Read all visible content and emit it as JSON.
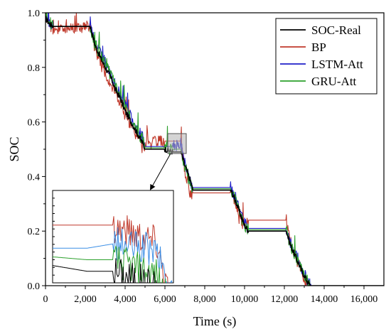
{
  "chart_data": {
    "type": "line",
    "title": "",
    "xlabel": "Time (s)",
    "ylabel": "SOC",
    "xlim": [
      0,
      17000
    ],
    "ylim": [
      0,
      1.0
    ],
    "xticks": [
      0,
      2000,
      4000,
      6000,
      8000,
      10000,
      12000,
      14000,
      16000
    ],
    "xtick_labels": [
      "0",
      "2,000",
      "4,000",
      "6,000",
      "8,000",
      "10,000",
      "12,000",
      "14,000",
      "16,000"
    ],
    "yticks": [
      0.0,
      0.2,
      0.4,
      0.6,
      0.8,
      1.0
    ],
    "ytick_labels": [
      "0.0",
      "0.2",
      "0.4",
      "0.6",
      "0.8",
      "1.0"
    ],
    "grid": false,
    "legend_position": "top-right",
    "inset": {
      "zoom_x_range": [
        6200,
        6900
      ],
      "zoom_y_range": [
        0.48,
        0.56
      ],
      "position": "lower-left"
    },
    "series": [
      {
        "name": "SOC-Real",
        "color": "#000000",
        "points": [
          [
            0,
            0.98
          ],
          [
            200,
            0.96
          ],
          [
            400,
            0.95
          ],
          [
            2250,
            0.95
          ],
          [
            2500,
            0.88
          ],
          [
            2800,
            0.83
          ],
          [
            3000,
            0.8
          ],
          [
            3300,
            0.76
          ],
          [
            3500,
            0.72
          ],
          [
            3800,
            0.68
          ],
          [
            4000,
            0.64
          ],
          [
            4300,
            0.6
          ],
          [
            4600,
            0.56
          ],
          [
            4900,
            0.52
          ],
          [
            5000,
            0.5
          ],
          [
            6000,
            0.5
          ],
          [
            6400,
            0.49
          ],
          [
            6800,
            0.49
          ],
          [
            7000,
            0.44
          ],
          [
            7300,
            0.38
          ],
          [
            7400,
            0.35
          ],
          [
            9300,
            0.35
          ],
          [
            9500,
            0.32
          ],
          [
            9800,
            0.26
          ],
          [
            10000,
            0.22
          ],
          [
            10200,
            0.2
          ],
          [
            12100,
            0.2
          ],
          [
            12300,
            0.15
          ],
          [
            12600,
            0.1
          ],
          [
            12900,
            0.05
          ],
          [
            13200,
            0.01
          ],
          [
            13300,
            0.0
          ],
          [
            17000,
            0.0
          ]
        ]
      },
      {
        "name": "BP",
        "color": "#c0392b",
        "points": [
          [
            0,
            0.99
          ],
          [
            200,
            0.96
          ],
          [
            400,
            0.94
          ],
          [
            2250,
            0.95
          ],
          [
            2500,
            0.86
          ],
          [
            2800,
            0.82
          ],
          [
            3000,
            0.78
          ],
          [
            3300,
            0.74
          ],
          [
            3500,
            0.71
          ],
          [
            3800,
            0.66
          ],
          [
            4000,
            0.62
          ],
          [
            4300,
            0.58
          ],
          [
            4600,
            0.55
          ],
          [
            4900,
            0.5
          ],
          [
            5000,
            0.52
          ],
          [
            6000,
            0.53
          ],
          [
            6400,
            0.53
          ],
          [
            6800,
            0.53
          ],
          [
            7000,
            0.42
          ],
          [
            7300,
            0.33
          ],
          [
            7400,
            0.34
          ],
          [
            9300,
            0.34
          ],
          [
            9500,
            0.31
          ],
          [
            9800,
            0.25
          ],
          [
            10000,
            0.21
          ],
          [
            10200,
            0.24
          ],
          [
            12100,
            0.24
          ],
          [
            12300,
            0.16
          ],
          [
            12600,
            0.1
          ],
          [
            12900,
            0.04
          ],
          [
            13200,
            0.0
          ],
          [
            17000,
            0.0
          ]
        ]
      },
      {
        "name": "LSTM-Att",
        "color": "#1f1fc8",
        "points": [
          [
            0,
            1.0
          ],
          [
            200,
            0.96
          ],
          [
            400,
            0.95
          ],
          [
            2250,
            0.95
          ],
          [
            2500,
            0.89
          ],
          [
            2800,
            0.85
          ],
          [
            3000,
            0.82
          ],
          [
            3300,
            0.78
          ],
          [
            3500,
            0.74
          ],
          [
            3800,
            0.7
          ],
          [
            4000,
            0.66
          ],
          [
            4300,
            0.62
          ],
          [
            4600,
            0.58
          ],
          [
            4900,
            0.54
          ],
          [
            5000,
            0.51
          ],
          [
            6000,
            0.51
          ],
          [
            6400,
            0.51
          ],
          [
            6800,
            0.52
          ],
          [
            7000,
            0.45
          ],
          [
            7300,
            0.37
          ],
          [
            7400,
            0.36
          ],
          [
            9300,
            0.36
          ],
          [
            9500,
            0.33
          ],
          [
            9800,
            0.27
          ],
          [
            10000,
            0.23
          ],
          [
            10200,
            0.21
          ],
          [
            12100,
            0.21
          ],
          [
            12300,
            0.16
          ],
          [
            12600,
            0.11
          ],
          [
            12900,
            0.06
          ],
          [
            13200,
            0.01
          ],
          [
            13350,
            0.0
          ],
          [
            17000,
            0.0
          ]
        ]
      },
      {
        "name": "GRU-Att",
        "color": "#2ca02c",
        "points": [
          [
            0,
            0.99
          ],
          [
            200,
            0.96
          ],
          [
            400,
            0.95
          ],
          [
            2250,
            0.95
          ],
          [
            2500,
            0.88
          ],
          [
            2800,
            0.84
          ],
          [
            3000,
            0.81
          ],
          [
            3300,
            0.77
          ],
          [
            3500,
            0.73
          ],
          [
            3800,
            0.69
          ],
          [
            4000,
            0.65
          ],
          [
            4300,
            0.61
          ],
          [
            4600,
            0.57
          ],
          [
            4900,
            0.53
          ],
          [
            5000,
            0.505
          ],
          [
            6000,
            0.505
          ],
          [
            6400,
            0.5
          ],
          [
            6800,
            0.5
          ],
          [
            7000,
            0.44
          ],
          [
            7300,
            0.37
          ],
          [
            7400,
            0.355
          ],
          [
            9300,
            0.355
          ],
          [
            9500,
            0.32
          ],
          [
            9800,
            0.26
          ],
          [
            10000,
            0.22
          ],
          [
            10200,
            0.205
          ],
          [
            12100,
            0.205
          ],
          [
            12300,
            0.15
          ],
          [
            12600,
            0.1
          ],
          [
            12900,
            0.05
          ],
          [
            13200,
            0.01
          ],
          [
            13300,
            0.0
          ],
          [
            17000,
            0.0
          ]
        ]
      }
    ]
  }
}
